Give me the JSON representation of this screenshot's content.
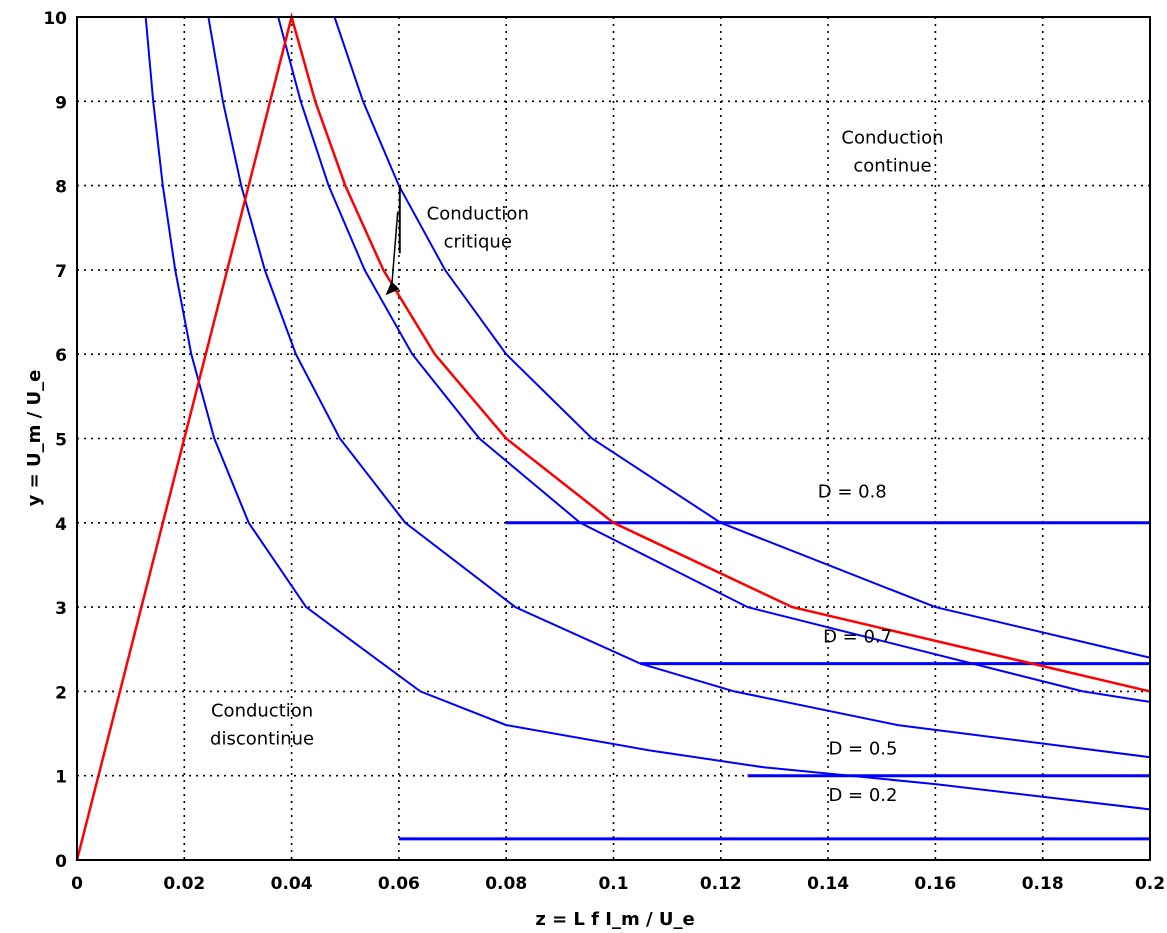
{
  "chart_data": {
    "type": "line",
    "title": "",
    "xlabel": "z = L f I_m / U_e",
    "ylabel": "y = U_m / U_e",
    "xlim": [
      0,
      0.2
    ],
    "ylim": [
      0,
      10
    ],
    "x_ticks": [
      "0",
      "0.02",
      "0.04",
      "0.06",
      "0.08",
      "0.1",
      "0.12",
      "0.14",
      "0.16",
      "0.18",
      "0.2"
    ],
    "y_ticks": [
      "0",
      "1",
      "2",
      "3",
      "4",
      "5",
      "6",
      "7",
      "8",
      "9",
      "10"
    ],
    "grid": "dotted",
    "colors": {
      "d_curves": "#0000ff",
      "critical": "#ff0000",
      "grid": "#000000"
    },
    "series": [
      {
        "name": "D = 0.8",
        "D": 0.8,
        "color": "#0000ff",
        "curve": [
          [
            0.0128,
            10
          ],
          [
            0.0142,
            9
          ],
          [
            0.016,
            8
          ],
          [
            0.0183,
            7
          ],
          [
            0.0213,
            6
          ],
          [
            0.0256,
            5
          ],
          [
            0.032,
            4
          ],
          [
            0.0427,
            3
          ],
          [
            0.064,
            2
          ],
          [
            0.08,
            1.6
          ],
          [
            0.1067,
            1.3
          ],
          [
            0.128,
            1.1
          ],
          [
            0.16,
            0.9
          ],
          [
            0.2,
            0.6
          ]
        ],
        "plateau": {
          "y": 4,
          "x_from": 0.08,
          "x_to": 0.2
        }
      },
      {
        "name": "D = 0.7",
        "D": 0.7,
        "color": "#0000ff",
        "curve": [
          [
            0.0245,
            10
          ],
          [
            0.0272,
            9
          ],
          [
            0.0306,
            8
          ],
          [
            0.035,
            7
          ],
          [
            0.0408,
            6
          ],
          [
            0.049,
            5
          ],
          [
            0.0612,
            4
          ],
          [
            0.0817,
            3
          ],
          [
            0.105,
            2.33
          ],
          [
            0.1225,
            2.0
          ],
          [
            0.153,
            1.6
          ],
          [
            0.2,
            1.22
          ]
        ],
        "plateau": {
          "y": 2.33,
          "x_from": 0.105,
          "x_to": 0.2
        }
      },
      {
        "name": "D = 0.5",
        "D": 0.5,
        "color": "#0000ff",
        "curve": [
          [
            0.0375,
            10
          ],
          [
            0.0417,
            9
          ],
          [
            0.0469,
            8
          ],
          [
            0.0536,
            7
          ],
          [
            0.0625,
            6
          ],
          [
            0.075,
            5
          ],
          [
            0.0938,
            4
          ],
          [
            0.125,
            3
          ],
          [
            0.1875,
            2
          ],
          [
            0.2,
            1.875
          ]
        ],
        "plateau": {
          "y": 1,
          "x_from": 0.125,
          "x_to": 0.2
        }
      },
      {
        "name": "D = 0.2",
        "D": 0.2,
        "color": "#0000ff",
        "curve": [
          [
            0.048,
            10
          ],
          [
            0.0533,
            9
          ],
          [
            0.06,
            8
          ],
          [
            0.0686,
            7
          ],
          [
            0.08,
            6
          ],
          [
            0.096,
            5
          ],
          [
            0.12,
            4
          ],
          [
            0.16,
            3
          ],
          [
            0.2,
            2.4
          ]
        ],
        "plateau": {
          "y": 0.25,
          "x_from": 0.06,
          "x_to": 0.2
        }
      },
      {
        "name": "Conduction critique",
        "color": "#ff0000",
        "points": [
          [
            0,
            0
          ],
          [
            0.04,
            10
          ],
          [
            0.0444,
            9
          ],
          [
            0.05,
            8
          ],
          [
            0.0571,
            7
          ],
          [
            0.0667,
            6
          ],
          [
            0.08,
            5
          ],
          [
            0.1,
            4
          ],
          [
            0.1333,
            3
          ],
          [
            0.2,
            2
          ]
        ]
      }
    ],
    "annotations": [
      {
        "label": "Conduction continue",
        "lines": [
          "Conduction",
          "continue"
        ],
        "x": 0.152,
        "y": 8.5
      },
      {
        "label": "Conduction critique",
        "lines": [
          "Conduction",
          "critique"
        ],
        "x": 0.0747,
        "y": 7.6,
        "arrow_to": [
          0.0575,
          6.7
        ]
      },
      {
        "label": "Conduction discontinue",
        "lines": [
          "Conduction",
          "discontinue"
        ],
        "x": 0.0345,
        "y": 1.7
      }
    ],
    "series_labels": [
      {
        "text": "D = 0.8",
        "x": 0.1445,
        "y": 4.3
      },
      {
        "text": "D = 0.7",
        "x": 0.1455,
        "y": 2.58
      },
      {
        "text": "D = 0.5",
        "x": 0.1465,
        "y": 1.25
      },
      {
        "text": "D = 0.2",
        "x": 0.1465,
        "y": 0.7
      }
    ]
  }
}
